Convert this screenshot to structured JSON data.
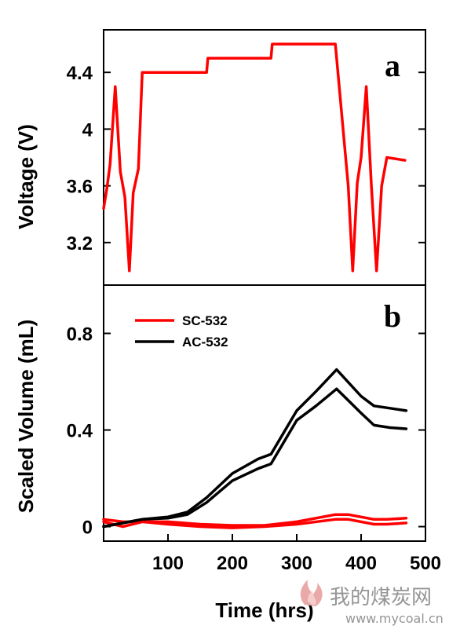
{
  "chart_data": [
    {
      "panel": "a",
      "type": "line",
      "xlabel": "",
      "ylabel": "Voltage (V)",
      "xlim": [
        0,
        500
      ],
      "ylim": [
        2.9,
        4.7
      ],
      "yticks": [
        3.2,
        3.6,
        4,
        4.4
      ],
      "ytick_labels": [
        "3.2",
        "3.6",
        "4",
        "4.4"
      ],
      "grid": false,
      "series": [
        {
          "color": "#ff0000",
          "x": [
            0,
            5,
            10,
            18,
            26,
            33,
            40,
            46,
            54,
            60,
            100,
            160,
            162,
            260,
            262,
            360,
            380,
            387,
            394,
            400,
            408,
            416,
            424,
            432,
            440,
            468
          ],
          "y": [
            3.44,
            3.58,
            3.75,
            4.3,
            3.7,
            3.52,
            3.0,
            3.55,
            3.72,
            4.4,
            4.4,
            4.4,
            4.5,
            4.5,
            4.6,
            4.6,
            3.6,
            3.0,
            3.62,
            3.8,
            4.3,
            3.6,
            3.0,
            3.6,
            3.8,
            3.78
          ]
        }
      ]
    },
    {
      "panel": "b",
      "type": "line",
      "xlabel": "Time (hrs)",
      "ylabel": "Scaled Volume (mL)",
      "xlim": [
        0,
        500
      ],
      "ylim": [
        -0.06,
        1.0
      ],
      "xticks": [
        100,
        200,
        300,
        400,
        500
      ],
      "xtick_labels": [
        "100",
        "200",
        "300",
        "400",
        "500"
      ],
      "yticks": [
        0,
        0.4,
        0.8
      ],
      "ytick_labels": [
        "0",
        "0.4",
        "0.8"
      ],
      "grid": false,
      "legend_position": "top-left",
      "series": [
        {
          "name": "SC-532",
          "color": "#ff0000",
          "x": [
            0,
            30,
            60,
            100,
            150,
            200,
            250,
            300,
            360,
            380,
            420,
            440,
            470
          ],
          "y": [
            0.03,
            0.02,
            0.02,
            0.02,
            0.01,
            0.005,
            0.005,
            0.02,
            0.05,
            0.05,
            0.03,
            0.03,
            0.035
          ]
        },
        {
          "name": "SC-532",
          "color": "#ff0000",
          "x": [
            0,
            30,
            60,
            100,
            150,
            200,
            250,
            300,
            360,
            380,
            420,
            440,
            470
          ],
          "y": [
            0.02,
            0.0,
            0.02,
            0.01,
            0.0,
            -0.005,
            0.0,
            0.01,
            0.03,
            0.03,
            0.01,
            0.01,
            0.015
          ]
        },
        {
          "name": "AC-532",
          "color": "#000000",
          "x": [
            0,
            40,
            60,
            100,
            130,
            160,
            200,
            240,
            260,
            300,
            330,
            362,
            400,
            420,
            445,
            470
          ],
          "y": [
            0.0,
            0.02,
            0.03,
            0.04,
            0.06,
            0.12,
            0.22,
            0.28,
            0.3,
            0.48,
            0.56,
            0.65,
            0.54,
            0.5,
            0.49,
            0.48
          ]
        },
        {
          "name": "AC-532",
          "color": "#000000",
          "x": [
            0,
            40,
            60,
            100,
            130,
            160,
            200,
            240,
            260,
            300,
            330,
            362,
            400,
            420,
            445,
            470
          ],
          "y": [
            0.0,
            0.02,
            0.03,
            0.035,
            0.05,
            0.1,
            0.19,
            0.24,
            0.26,
            0.44,
            0.5,
            0.57,
            0.47,
            0.42,
            0.41,
            0.405
          ]
        }
      ],
      "legend": [
        {
          "label": "SC-532",
          "color": "#ff0000"
        },
        {
          "label": "AC-532",
          "color": "#000000"
        }
      ]
    }
  ],
  "watermark": {
    "text": "我的煤炭网",
    "url": "www.mycoal.cn"
  }
}
